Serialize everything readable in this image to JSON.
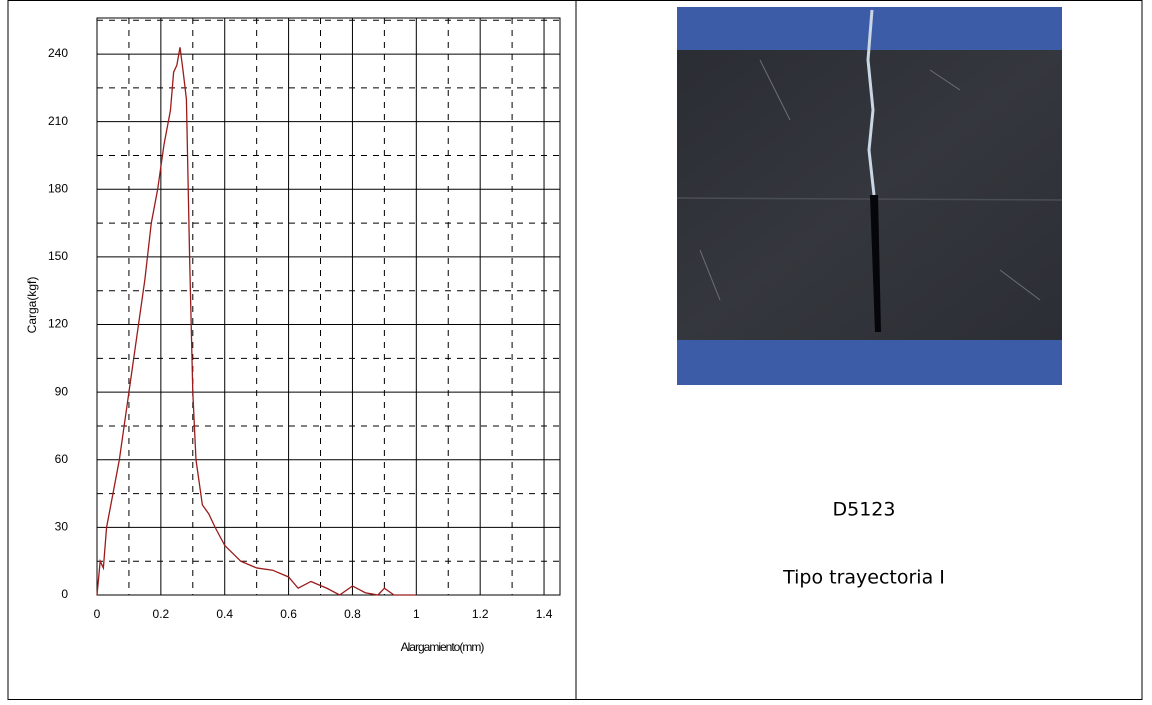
{
  "chart_data": {
    "type": "line",
    "x_label": "Alargamiento(mm)",
    "y_label": "Carga(kgf)",
    "x": [
      0,
      0.01,
      0.02,
      0.03,
      0.05,
      0.07,
      0.09,
      0.1,
      0.12,
      0.15,
      0.17,
      0.19,
      0.21,
      0.23,
      0.24,
      0.25,
      0.26,
      0.27,
      0.28,
      0.29,
      0.3,
      0.31,
      0.33,
      0.35,
      0.37,
      0.4,
      0.45,
      0.5,
      0.55,
      0.6,
      0.63,
      0.67,
      0.72,
      0.76,
      0.8,
      0.84,
      0.88,
      0.9,
      0.93,
      1.0
    ],
    "series": [
      {
        "color": "#9b1b1b",
        "values": [
          0,
          15,
          12,
          30,
          45,
          60,
          80,
          90,
          110,
          140,
          165,
          180,
          200,
          215,
          232,
          235,
          243,
          232,
          220,
          150,
          90,
          60,
          40,
          36,
          30,
          22,
          15,
          12,
          11,
          8,
          3,
          6,
          3,
          0,
          4,
          1,
          0,
          3,
          0,
          0
        ]
      }
    ],
    "xlim": [
      0,
      1.45
    ],
    "ylim": [
      0,
      256
    ],
    "xticks": [
      0,
      0.2,
      0.4,
      0.6,
      0.8,
      1,
      1.2,
      1.4
    ],
    "yticks": [
      0,
      30,
      60,
      90,
      120,
      150,
      180,
      210,
      240
    ],
    "minor_xticks": [
      0.1,
      0.3,
      0.5,
      0.7,
      0.9,
      1.1,
      1.3
    ],
    "minor_yticks": [
      15,
      45,
      75,
      105,
      135,
      165,
      195,
      225,
      255
    ],
    "grid": true
  },
  "caption": {
    "code": "D5123",
    "label": "Tipo trayectoria I"
  }
}
